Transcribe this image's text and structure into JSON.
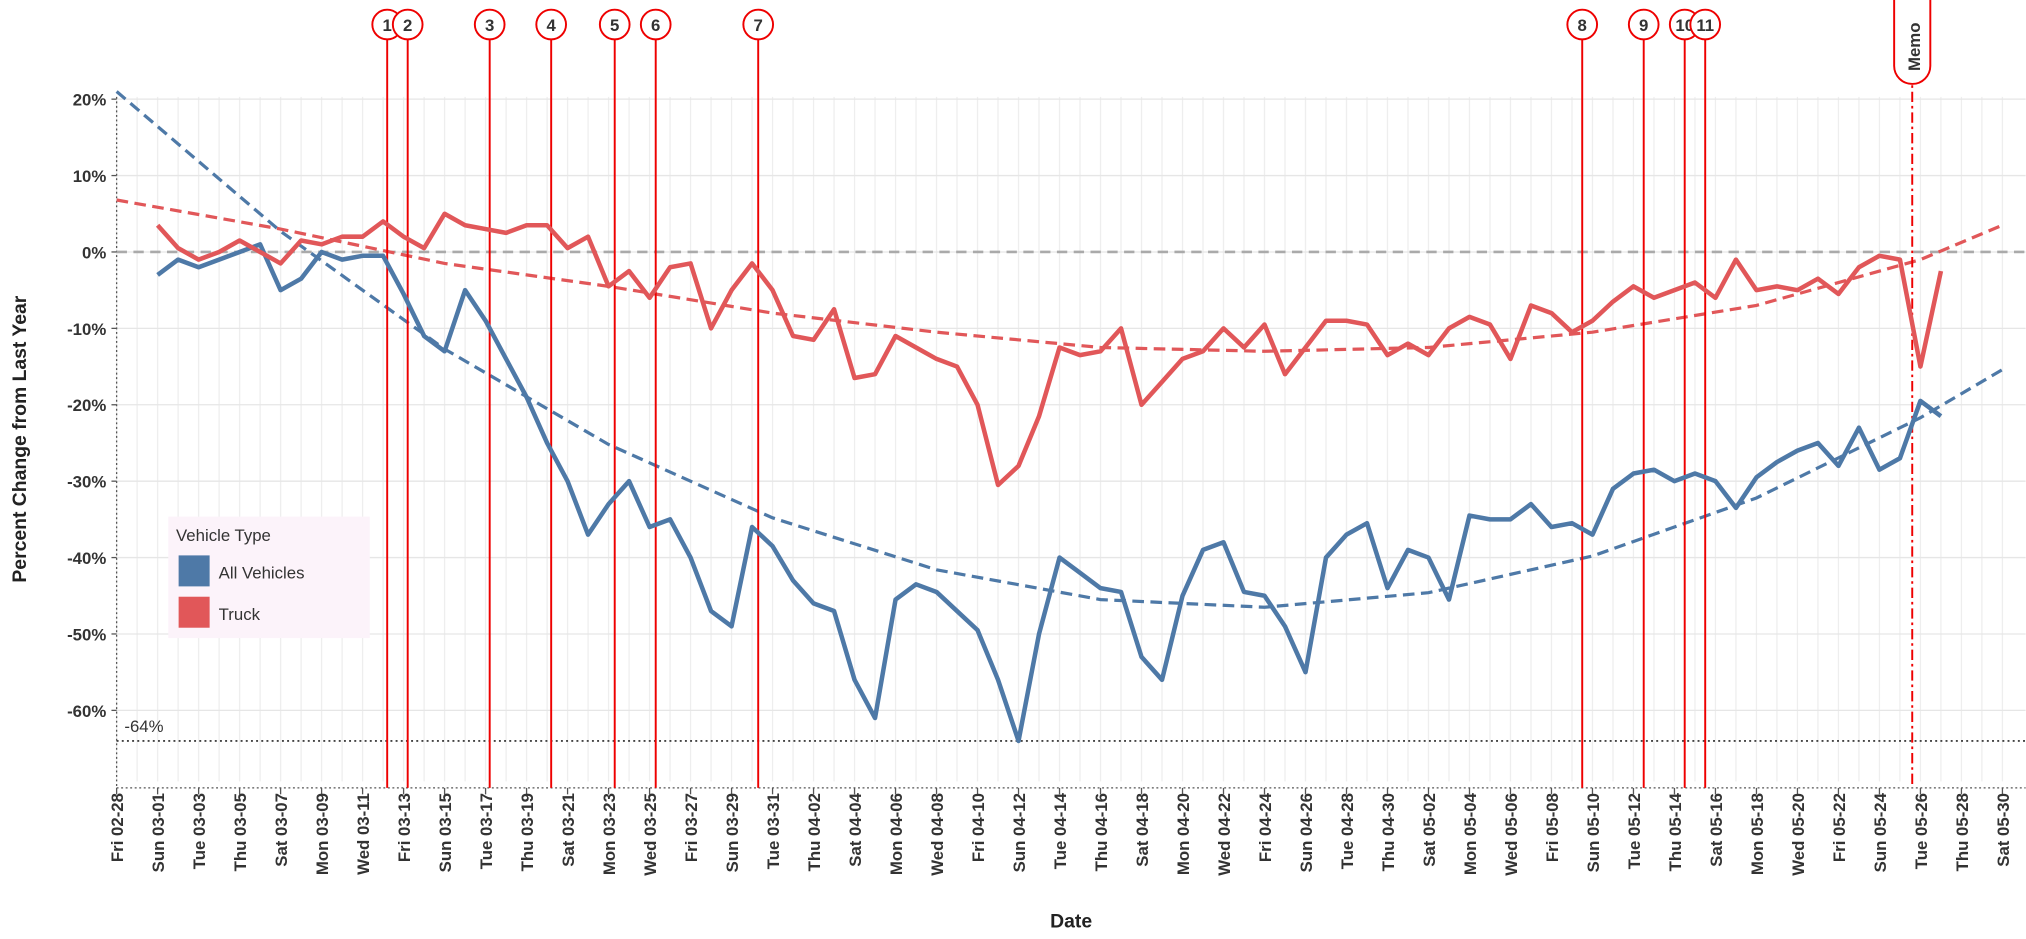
{
  "chart_data": {
    "type": "line",
    "x_axis_label": "Date",
    "y_axis_label": "Percent Change from Last Year",
    "legend_title": "Vehicle Type",
    "grid": true,
    "categories": [
      "Fri 02-28",
      null,
      "Sun 03-01",
      null,
      "Tue 03-03",
      null,
      "Thu 03-05",
      null,
      "Sat 03-07",
      null,
      "Mon 03-09",
      null,
      "Wed 03-11",
      null,
      "Fri 03-13",
      null,
      "Sun 03-15",
      null,
      "Tue 03-17",
      null,
      "Thu 03-19",
      null,
      "Sat 03-21",
      null,
      "Mon 03-23",
      null,
      "Wed 03-25",
      null,
      "Fri 03-27",
      null,
      "Sun 03-29",
      null,
      "Tue 03-31",
      null,
      "Thu 04-02",
      null,
      "Sat 04-04",
      null,
      "Mon 04-06",
      null,
      "Wed 04-08",
      null,
      "Fri 04-10",
      null,
      "Sun 04-12",
      null,
      "Tue 04-14",
      null,
      "Thu 04-16",
      null,
      "Sat 04-18",
      null,
      "Mon 04-20",
      null,
      "Wed 04-22",
      null,
      "Fri 04-24",
      null,
      "Sun 04-26",
      null,
      "Tue 04-28",
      null,
      "Thu 04-30",
      null,
      "Sat 05-02",
      null,
      "Mon 05-04",
      null,
      "Wed 05-06",
      null,
      "Fri 05-08",
      null,
      "Sun 05-10",
      null,
      "Tue 05-12",
      null,
      "Thu 05-14",
      null,
      "Sat 05-16",
      null,
      "Mon 05-18",
      null,
      "Wed 05-20",
      null,
      "Fri 05-22",
      null,
      "Sun 05-24",
      null,
      "Tue 05-26",
      null,
      "Thu 05-28",
      null,
      "Sat 05-30"
    ],
    "series": [
      {
        "name": "All Vehicles",
        "color": "#4e79a7",
        "values": [
          null,
          null,
          -3,
          -1,
          -2,
          -1,
          0,
          1,
          -5,
          -3.5,
          0,
          -1,
          -0.5,
          -0.5,
          -5.5,
          -11,
          -13,
          -5,
          -9,
          -14,
          -19,
          -25,
          -30,
          -37,
          -33,
          -30,
          -36,
          -35,
          -40,
          -47,
          -49,
          -36,
          -38.5,
          -43,
          -46,
          -47,
          -56,
          -61,
          -45.5,
          -43.5,
          -44.5,
          -47,
          -49.5,
          -56,
          -64,
          -50,
          -40,
          -42,
          -44,
          -44.5,
          -53,
          -56,
          -45,
          -39,
          -38,
          -44.5,
          -45,
          -49,
          -55,
          -40,
          -37,
          -35.5,
          -44,
          -39,
          -40,
          -45.5,
          -34.5,
          -35,
          -35,
          -33,
          -36,
          -35.5,
          -37,
          -31,
          -29,
          -28.5,
          -30,
          -29,
          -30,
          -33.5,
          -29.5,
          -27.5,
          -26,
          -25,
          -28,
          -23,
          -28.5,
          -27,
          -19.5,
          -21.5,
          null,
          null,
          null
        ]
      },
      {
        "name": "Truck",
        "color": "#e15759",
        "values": [
          null,
          null,
          3.5,
          0.5,
          -1,
          0,
          1.5,
          0,
          -1.5,
          1.5,
          1,
          2,
          2,
          4,
          2,
          0.5,
          5,
          3.5,
          3,
          2.5,
          3.5,
          3.5,
          0.5,
          2,
          -4.5,
          -2.5,
          -6,
          -2,
          -1.5,
          -10,
          -5,
          -1.5,
          -5,
          -11,
          -11.5,
          -7.5,
          -16.5,
          -16,
          -11,
          -12.5,
          -14,
          -15,
          -20,
          -30.5,
          -28,
          -21.5,
          -12.5,
          -13.5,
          -13,
          -10,
          -20,
          -17,
          -14,
          -13,
          -10,
          -12.5,
          -9.5,
          -16,
          -12.5,
          -9,
          -9,
          -9.5,
          -13.5,
          -12,
          -13.5,
          -10,
          -8.5,
          -9.5,
          -14,
          -7,
          -8,
          -10.5,
          -9,
          -6.5,
          -4.5,
          -6,
          -5,
          -4,
          -6,
          -1,
          -5,
          -4.5,
          -5,
          -3.5,
          -5.5,
          -2,
          -0.5,
          -1,
          -15,
          -2.5,
          null,
          null,
          null
        ]
      }
    ],
    "trend_lines": [
      {
        "color": "#4e79a7",
        "x": [
          0,
          8,
          16,
          24,
          32,
          40,
          48,
          56,
          64,
          72,
          80,
          88,
          92
        ],
        "values": [
          21,
          2.7,
          -12.7,
          -25.2,
          -34.8,
          -41.6,
          -45.5,
          -46.5,
          -44.6,
          -39.8,
          -32.2,
          -21.7,
          -15.4
        ]
      },
      {
        "color": "#e15759",
        "x": [
          0,
          8,
          16,
          24,
          32,
          40,
          48,
          56,
          64,
          72,
          80,
          88,
          92
        ],
        "values": [
          6.8,
          3,
          -1.5,
          -4.5,
          -8,
          -10.5,
          -12.5,
          -13,
          -12.5,
          -10.5,
          -7,
          -1,
          3.5
        ]
      }
    ],
    "reference_lines": [
      {
        "value": 0,
        "style": "dashed"
      },
      {
        "value": -64,
        "label": "-64%",
        "style": "dotted"
      }
    ],
    "events": [
      {
        "label": "1",
        "x": 13.2
      },
      {
        "label": "2",
        "x": 14.2
      },
      {
        "label": "3",
        "x": 18.2
      },
      {
        "label": "4",
        "x": 21.2
      },
      {
        "label": "5",
        "x": 24.3
      },
      {
        "label": "6",
        "x": 26.3
      },
      {
        "label": "7",
        "x": 31.3
      },
      {
        "label": "8",
        "x": 71.5
      },
      {
        "label": "9",
        "x": 74.5
      },
      {
        "label": "10",
        "x": 76.5
      },
      {
        "label": "11",
        "x": 77.5
      },
      {
        "label": "Memo",
        "x": 87.6,
        "style": "dashdot"
      }
    ],
    "ylim": [
      -69.3,
      20.3
    ],
    "yticks": [
      {
        "value": 20,
        "label": "20%"
      },
      {
        "value": 10,
        "label": "10%"
      },
      {
        "value": 0,
        "label": "0%"
      },
      {
        "value": -10,
        "label": "-10%"
      },
      {
        "value": -20,
        "label": "-20%"
      },
      {
        "value": -30,
        "label": "-30%"
      },
      {
        "value": -40,
        "label": "-40%"
      },
      {
        "value": -50,
        "label": "-50%"
      },
      {
        "value": -60,
        "label": "-60%"
      }
    ]
  }
}
